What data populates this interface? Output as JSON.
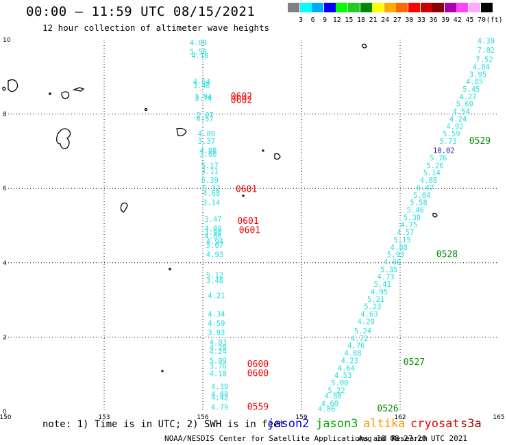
{
  "header": {
    "title": "00:00 — 11:59 UTC 08/15/2021",
    "subtitle": "12 hour collection of altimeter wave heights"
  },
  "colorbar": {
    "colors": [
      "#808080",
      "#00ffff",
      "#00aaff",
      "#0000ff",
      "#00ff00",
      "#22cc22",
      "#008800",
      "#ffff00",
      "#ffaa00",
      "#ff6600",
      "#ff0000",
      "#cc0000",
      "#880000",
      "#aa00aa",
      "#ff44ff",
      "#ffaaff",
      "#000000"
    ],
    "labels": [
      "3",
      "6",
      "9",
      "12",
      "15",
      "18",
      "21",
      "24",
      "27",
      "30",
      "33",
      "36",
      "39",
      "42",
      "45",
      "70",
      "(ft)"
    ]
  },
  "axes": {
    "x_ticks": [
      "150",
      "153",
      "156",
      "159",
      "162",
      "165"
    ],
    "y_ticks": [
      "0",
      "2",
      "4",
      "6",
      "8",
      "10"
    ]
  },
  "chart_data": {
    "type": "scatter",
    "xlim": [
      150,
      165
    ],
    "ylim": [
      0,
      10
    ],
    "grid": true,
    "units": "ft",
    "swh_labels": [
      {
        "x": 155.6,
        "y": 9.85,
        "v": "4.88"
      },
      {
        "x": 155.6,
        "y": 9.6,
        "v": "5.58"
      },
      {
        "x": 155.65,
        "y": 9.5,
        "v": "4.18"
      },
      {
        "x": 155.7,
        "y": 8.8,
        "v": "4.64"
      },
      {
        "x": 155.7,
        "y": 8.7,
        "v": "3.46"
      },
      {
        "x": 155.75,
        "y": 8.4,
        "v": "3.94"
      },
      {
        "x": 155.75,
        "y": 8.35,
        "v": "3.74"
      },
      {
        "x": 155.8,
        "y": 7.9,
        "v": "2.67"
      },
      {
        "x": 155.8,
        "y": 7.8,
        "v": "4.57"
      },
      {
        "x": 155.85,
        "y": 7.4,
        "v": "4.80"
      },
      {
        "x": 155.85,
        "y": 7.2,
        "v": "3.37"
      },
      {
        "x": 155.9,
        "y": 6.95,
        "v": "4.08"
      },
      {
        "x": 155.9,
        "y": 6.85,
        "v": "3.60"
      },
      {
        "x": 155.95,
        "y": 6.55,
        "v": "5.17"
      },
      {
        "x": 155.95,
        "y": 6.4,
        "v": "3.11"
      },
      {
        "x": 155.95,
        "y": 6.15,
        "v": "6.39"
      },
      {
        "x": 156.0,
        "y": 5.95,
        "v": "5.32"
      },
      {
        "x": 156.0,
        "y": 5.8,
        "v": "4.68"
      },
      {
        "x": 156.0,
        "y": 5.55,
        "v": "3.14"
      },
      {
        "x": 156.05,
        "y": 5.1,
        "v": "3.47"
      },
      {
        "x": 156.05,
        "y": 4.85,
        "v": "4.09"
      },
      {
        "x": 156.05,
        "y": 4.75,
        "v": "3.90"
      },
      {
        "x": 156.05,
        "y": 4.65,
        "v": "4.06"
      },
      {
        "x": 156.1,
        "y": 4.5,
        "v": "4.94"
      },
      {
        "x": 156.1,
        "y": 4.4,
        "v": "5.07"
      },
      {
        "x": 156.1,
        "y": 4.15,
        "v": "4.93"
      },
      {
        "x": 156.1,
        "y": 3.6,
        "v": "5.12"
      },
      {
        "x": 156.1,
        "y": 3.45,
        "v": "3.48"
      },
      {
        "x": 156.15,
        "y": 3.05,
        "v": "4.21"
      },
      {
        "x": 156.15,
        "y": 2.55,
        "v": "4.34"
      },
      {
        "x": 156.15,
        "y": 2.3,
        "v": "4.59"
      },
      {
        "x": 156.15,
        "y": 2.05,
        "v": "3.93"
      },
      {
        "x": 156.2,
        "y": 1.8,
        "v": "4.03"
      },
      {
        "x": 156.2,
        "y": 1.65,
        "v": "4.28"
      },
      {
        "x": 156.2,
        "y": 1.55,
        "v": "4.24"
      },
      {
        "x": 156.2,
        "y": 1.3,
        "v": "5.09"
      },
      {
        "x": 156.2,
        "y": 1.15,
        "v": "3.76"
      },
      {
        "x": 156.2,
        "y": 0.95,
        "v": "4.10"
      },
      {
        "x": 156.25,
        "y": 0.6,
        "v": "4.39"
      },
      {
        "x": 156.25,
        "y": 0.4,
        "v": "4.88"
      },
      {
        "x": 156.25,
        "y": 0.3,
        "v": "4.42"
      },
      {
        "x": 156.25,
        "y": 0.05,
        "v": "4.79"
      },
      {
        "x": 164.35,
        "y": 9.9,
        "v": "4.39"
      },
      {
        "x": 164.35,
        "y": 9.65,
        "v": "7.02"
      },
      {
        "x": 164.3,
        "y": 9.4,
        "v": "7.52"
      },
      {
        "x": 164.2,
        "y": 9.2,
        "v": "4.84"
      },
      {
        "x": 164.1,
        "y": 9.0,
        "v": "3.95"
      },
      {
        "x": 164.0,
        "y": 8.8,
        "v": "4.85"
      },
      {
        "x": 163.9,
        "y": 8.6,
        "v": "5.45"
      },
      {
        "x": 163.8,
        "y": 8.4,
        "v": "4.27"
      },
      {
        "x": 163.7,
        "y": 8.2,
        "v": "5.69"
      },
      {
        "x": 163.6,
        "y": 8.0,
        "v": "4.54"
      },
      {
        "x": 163.5,
        "y": 7.8,
        "v": "4.24"
      },
      {
        "x": 163.4,
        "y": 7.6,
        "v": "4.92"
      },
      {
        "x": 163.3,
        "y": 7.4,
        "v": "5.59"
      },
      {
        "x": 163.2,
        "y": 7.2,
        "v": "5.73"
      },
      {
        "x": 163.0,
        "y": 6.95,
        "v": "10.02"
      },
      {
        "x": 162.9,
        "y": 6.75,
        "v": "5.76"
      },
      {
        "x": 162.8,
        "y": 6.55,
        "v": "5.26"
      },
      {
        "x": 162.7,
        "y": 6.35,
        "v": "5.14"
      },
      {
        "x": 162.6,
        "y": 6.15,
        "v": "4.88"
      },
      {
        "x": 162.5,
        "y": 5.95,
        "v": "6.47"
      },
      {
        "x": 162.4,
        "y": 5.75,
        "v": "5.04"
      },
      {
        "x": 162.3,
        "y": 5.55,
        "v": "5.58"
      },
      {
        "x": 162.2,
        "y": 5.35,
        "v": "5.46"
      },
      {
        "x": 162.1,
        "y": 5.15,
        "v": "5.39"
      },
      {
        "x": 162.0,
        "y": 4.95,
        "v": "4.75"
      },
      {
        "x": 161.9,
        "y": 4.75,
        "v": "4.57"
      },
      {
        "x": 161.8,
        "y": 4.55,
        "v": "5.15"
      },
      {
        "x": 161.7,
        "y": 4.35,
        "v": "4.80"
      },
      {
        "x": 161.6,
        "y": 4.15,
        "v": "5.93"
      },
      {
        "x": 161.5,
        "y": 3.95,
        "v": "4.69"
      },
      {
        "x": 161.4,
        "y": 3.75,
        "v": "5.35"
      },
      {
        "x": 161.3,
        "y": 3.55,
        "v": "4.73"
      },
      {
        "x": 161.2,
        "y": 3.35,
        "v": "5.41"
      },
      {
        "x": 161.1,
        "y": 3.15,
        "v": "4.95"
      },
      {
        "x": 161.0,
        "y": 2.95,
        "v": "5.21"
      },
      {
        "x": 160.9,
        "y": 2.75,
        "v": "5.23"
      },
      {
        "x": 160.8,
        "y": 2.55,
        "v": "4.63"
      },
      {
        "x": 160.7,
        "y": 2.35,
        "v": "4.29"
      },
      {
        "x": 160.6,
        "y": 2.1,
        "v": "5.24"
      },
      {
        "x": 160.5,
        "y": 1.9,
        "v": "4.72"
      },
      {
        "x": 160.4,
        "y": 1.7,
        "v": "4.76"
      },
      {
        "x": 160.3,
        "y": 1.5,
        "v": "4.88"
      },
      {
        "x": 160.2,
        "y": 1.3,
        "v": "4.23"
      },
      {
        "x": 160.1,
        "y": 1.1,
        "v": "4.64"
      },
      {
        "x": 160.0,
        "y": 0.9,
        "v": "4.53"
      },
      {
        "x": 159.9,
        "y": 0.7,
        "v": "5.00"
      },
      {
        "x": 159.8,
        "y": 0.5,
        "v": "5.22"
      },
      {
        "x": 159.7,
        "y": 0.35,
        "v": "4.88"
      },
      {
        "x": 159.6,
        "y": 0.15,
        "v": "4.60"
      },
      {
        "x": 159.5,
        "y": 0.0,
        "v": "4.86"
      }
    ],
    "time_labels": [
      {
        "x": 156.85,
        "y": 8.4,
        "v": "0602",
        "sat": "cryosat"
      },
      {
        "x": 156.85,
        "y": 8.3,
        "v": "0602",
        "sat": "cryosat"
      },
      {
        "x": 157.0,
        "y": 5.9,
        "v": "0601",
        "sat": "cryosat"
      },
      {
        "x": 157.05,
        "y": 5.05,
        "v": "0601",
        "sat": "cryosat"
      },
      {
        "x": 157.1,
        "y": 4.8,
        "v": "0601",
        "sat": "cryosat"
      },
      {
        "x": 157.35,
        "y": 1.2,
        "v": "0600",
        "sat": "cryosat"
      },
      {
        "x": 157.35,
        "y": 0.95,
        "v": "0600",
        "sat": "cryosat"
      },
      {
        "x": 157.35,
        "y": 0.05,
        "v": "0559",
        "sat": "cryosat"
      },
      {
        "x": 164.1,
        "y": 7.2,
        "v": "0529",
        "sat": "jason3"
      },
      {
        "x": 163.1,
        "y": 4.15,
        "v": "0528",
        "sat": "jason3"
      },
      {
        "x": 162.1,
        "y": 1.25,
        "v": "0527",
        "sat": "jason3"
      },
      {
        "x": 161.3,
        "y": 0.0,
        "v": "0526",
        "sat": "jason3"
      }
    ]
  },
  "footer": {
    "note": "note: 1) Time is in UTC; 2) SWH is in feet",
    "legend": [
      {
        "name": "jason2",
        "color": "#0000dd"
      },
      {
        "name": "jason3",
        "color": "#00aa00"
      },
      {
        "name": "altika",
        "color": "#ff9900"
      },
      {
        "name": "cryosat",
        "color": "#ee0000"
      },
      {
        "name": "s3a",
        "color": "#aa0000"
      }
    ],
    "credit": "NOAA/NESDIS Center for Satellite Applications and Research",
    "timestamp": "Aug 18 08:27:20 UTC 2021"
  },
  "colors": {
    "swh": "#22dddd",
    "swh_high": "#2222bb",
    "cryosat": "#ee0000",
    "jason3": "#008800",
    "grid": "#000000"
  }
}
